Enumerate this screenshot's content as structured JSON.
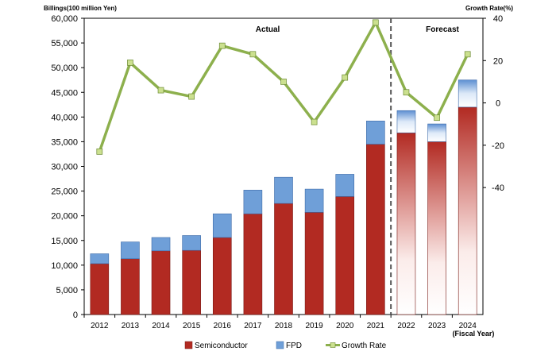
{
  "chart_data": {
    "type": "bar",
    "stacked": true,
    "left_axis_title": "Billings(100 million Yen)",
    "right_axis_title": "Growth Rate(%)",
    "categories": [
      "2012",
      "2013",
      "2014",
      "2015",
      "2016",
      "2017",
      "2018",
      "2019",
      "2020",
      "2021",
      "2022",
      "2023",
      "2024"
    ],
    "fiscal_year_label": "(Fiscal Year)",
    "y_left": {
      "min": 0,
      "max": 60000,
      "step": 5000,
      "tick_labels": [
        "0",
        "5,000",
        "10,000",
        "15,000",
        "20,000",
        "25,000",
        "30,000",
        "35,000",
        "40,000",
        "45,000",
        "50,000",
        "55,000",
        "60,000"
      ]
    },
    "y_right": {
      "min": -100,
      "max": 40,
      "ticks": [
        40,
        20,
        0,
        -20,
        -40
      ],
      "tick_labels": [
        "40",
        "20",
        "0",
        "-20",
        "-40"
      ]
    },
    "series": [
      {
        "name": "Semiconductor",
        "color": "#b22a22",
        "values": [
          10300,
          11300,
          12900,
          13000,
          15600,
          20400,
          22500,
          20700,
          23900,
          34500,
          36800,
          35000,
          42000
        ]
      },
      {
        "name": "FPD",
        "color": "#6f9fd8",
        "values": [
          2000,
          3400,
          2700,
          3000,
          4800,
          4800,
          5300,
          4700,
          4500,
          4700,
          4500,
          3600,
          5500
        ]
      },
      {
        "name": "Growth Rate",
        "axis": "right",
        "type": "line",
        "color": "#8db04d",
        "values": [
          -23,
          19,
          6,
          3,
          27,
          23,
          10,
          -9,
          12,
          38,
          5,
          -7,
          23
        ]
      }
    ],
    "annotations": [
      {
        "text": "Actual",
        "over": "2012-2021"
      },
      {
        "text": "Forecast",
        "over": "2022-2024"
      }
    ],
    "forecast_start_index": 10,
    "legend_position": "bottom",
    "grid": false
  }
}
